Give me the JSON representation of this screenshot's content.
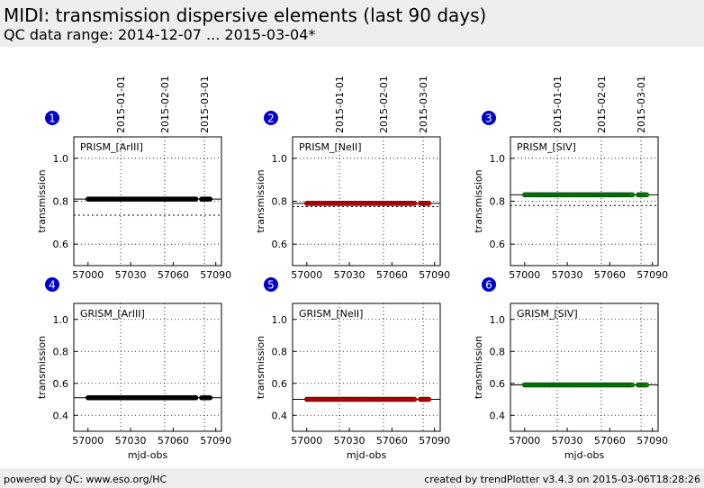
{
  "header": {
    "title": "MIDI: transmission dispersive elements (last 90 days)",
    "subtitle": "QC data range: 2014-12-07 ... 2015-03-04*"
  },
  "footer": {
    "left": "powered by QC: www.eso.org/HC",
    "right": "created by trendPlotter v3.4.3 on 2015-03-06T18:28:26"
  },
  "colors": {
    "black": "#000000",
    "red": "#cc0000",
    "green": "#008800",
    "badge": "#0000cc"
  },
  "chart_data": [
    {
      "type": "scatter",
      "panel_number": "1",
      "label": "PRISM_[ArIII]",
      "xlabel": "",
      "ylabel": "transmission",
      "xlim": [
        56990,
        57094
      ],
      "ylim": [
        0.5,
        1.1
      ],
      "yticks": [
        0.6,
        0.8,
        1.0
      ],
      "xticks": [
        57000,
        57030,
        57060,
        57090
      ],
      "top_ticks": [
        {
          "x": 57023,
          "label": "2015-01-01"
        },
        {
          "x": 57054,
          "label": "2015-02-01"
        },
        {
          "x": 57082,
          "label": "2015-03-01"
        }
      ],
      "hline": 0.81,
      "hline_dotted": 0.735,
      "color": "#000000",
      "segments": [
        {
          "x": [
            57000,
            57076
          ],
          "y": 0.81
        },
        {
          "x": [
            57080,
            57086
          ],
          "y": 0.81
        }
      ]
    },
    {
      "type": "scatter",
      "panel_number": "2",
      "label": "PRISM_[NeII]",
      "xlabel": "",
      "ylabel": "transmission",
      "xlim": [
        56990,
        57094
      ],
      "ylim": [
        0.5,
        1.1
      ],
      "yticks": [
        0.6,
        0.8,
        1.0
      ],
      "xticks": [
        57000,
        57030,
        57060,
        57090
      ],
      "top_ticks": [
        {
          "x": 57023,
          "label": "2015-01-01"
        },
        {
          "x": 57054,
          "label": "2015-02-01"
        },
        {
          "x": 57082,
          "label": "2015-03-01"
        }
      ],
      "hline": 0.79,
      "hline_dotted": 0.775,
      "color": "#cc0000",
      "segments": [
        {
          "x": [
            57000,
            57076
          ],
          "y": 0.79
        },
        {
          "x": [
            57080,
            57086
          ],
          "y": 0.79
        }
      ]
    },
    {
      "type": "scatter",
      "panel_number": "3",
      "label": "PRISM_[SIV]",
      "xlabel": "",
      "ylabel": "transmission",
      "xlim": [
        56990,
        57094
      ],
      "ylim": [
        0.5,
        1.1
      ],
      "yticks": [
        0.6,
        0.8,
        1.0
      ],
      "xticks": [
        57000,
        57030,
        57060,
        57090
      ],
      "top_ticks": [
        {
          "x": 57023,
          "label": "2015-01-01"
        },
        {
          "x": 57054,
          "label": "2015-02-01"
        },
        {
          "x": 57082,
          "label": "2015-03-01"
        }
      ],
      "hline": 0.83,
      "hline_dotted": 0.78,
      "color": "#008800",
      "segments": [
        {
          "x": [
            57000,
            57076
          ],
          "y": 0.83
        },
        {
          "x": [
            57080,
            57086
          ],
          "y": 0.83
        }
      ]
    },
    {
      "type": "scatter",
      "panel_number": "4",
      "label": "GRISM_[ArIII]",
      "xlabel": "mjd-obs",
      "ylabel": "transmission",
      "xlim": [
        56990,
        57094
      ],
      "ylim": [
        0.3,
        1.1
      ],
      "yticks": [
        0.4,
        0.6,
        0.8,
        1.0
      ],
      "xticks": [
        57000,
        57030,
        57060,
        57090
      ],
      "top_ticks": [
        {
          "x": 57023,
          "label": ""
        },
        {
          "x": 57054,
          "label": ""
        },
        {
          "x": 57082,
          "label": ""
        }
      ],
      "hline": 0.51,
      "hline_dotted": null,
      "color": "#000000",
      "segments": [
        {
          "x": [
            57000,
            57076
          ],
          "y": 0.51
        },
        {
          "x": [
            57080,
            57086
          ],
          "y": 0.51
        }
      ]
    },
    {
      "type": "scatter",
      "panel_number": "5",
      "label": "GRISM_[NeII]",
      "xlabel": "mjd-obs",
      "ylabel": "transmission",
      "xlim": [
        56990,
        57094
      ],
      "ylim": [
        0.3,
        1.1
      ],
      "yticks": [
        0.4,
        0.6,
        0.8,
        1.0
      ],
      "xticks": [
        57000,
        57030,
        57060,
        57090
      ],
      "top_ticks": [
        {
          "x": 57023,
          "label": ""
        },
        {
          "x": 57054,
          "label": ""
        },
        {
          "x": 57082,
          "label": ""
        }
      ],
      "hline": 0.5,
      "hline_dotted": null,
      "color": "#cc0000",
      "segments": [
        {
          "x": [
            57000,
            57076
          ],
          "y": 0.5
        },
        {
          "x": [
            57080,
            57086
          ],
          "y": 0.5
        }
      ]
    },
    {
      "type": "scatter",
      "panel_number": "6",
      "label": "GRISM_[SIV]",
      "xlabel": "mjd-obs",
      "ylabel": "transmission",
      "xlim": [
        56990,
        57094
      ],
      "ylim": [
        0.3,
        1.1
      ],
      "yticks": [
        0.4,
        0.6,
        0.8,
        1.0
      ],
      "xticks": [
        57000,
        57030,
        57060,
        57090
      ],
      "top_ticks": [
        {
          "x": 57023,
          "label": ""
        },
        {
          "x": 57054,
          "label": ""
        },
        {
          "x": 57082,
          "label": ""
        }
      ],
      "hline": 0.59,
      "hline_dotted": null,
      "color": "#008800",
      "segments": [
        {
          "x": [
            57000,
            57076
          ],
          "y": 0.59
        },
        {
          "x": [
            57080,
            57086
          ],
          "y": 0.59
        }
      ]
    }
  ]
}
